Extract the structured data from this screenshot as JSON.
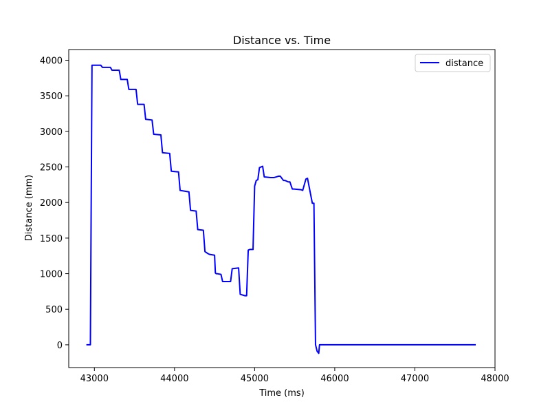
{
  "chart_data": {
    "type": "line",
    "title": "Distance vs. Time",
    "xlabel": "Time (ms)",
    "ylabel": "Distance (mm)",
    "xlim": [
      42680,
      48000
    ],
    "ylim": [
      -320,
      4150
    ],
    "xticks": [
      43000,
      44000,
      45000,
      46000,
      47000,
      48000
    ],
    "yticks": [
      0,
      500,
      1000,
      1500,
      2000,
      2500,
      3000,
      3500,
      4000
    ],
    "grid": false,
    "legend_position": "top-right",
    "series": [
      {
        "name": "distance",
        "color": "#0000ff",
        "x": [
          42900,
          42950,
          42970,
          43080,
          43100,
          43200,
          43220,
          43310,
          43330,
          43410,
          43430,
          43520,
          43540,
          43620,
          43640,
          43720,
          43740,
          43830,
          43850,
          43940,
          43960,
          44050,
          44070,
          44180,
          44200,
          44270,
          44290,
          44360,
          44380,
          44420,
          44440,
          44500,
          44510,
          44520,
          44530,
          44580,
          44600,
          44700,
          44720,
          44800,
          44820,
          44880,
          44900,
          44920,
          44940,
          44980,
          45000,
          45020,
          45040,
          45060,
          45100,
          45120,
          45200,
          45240,
          45300,
          45320,
          45360,
          45380,
          45420,
          45440,
          45470,
          45490,
          45580,
          45600,
          45640,
          45660,
          45720,
          45740,
          45760,
          45780,
          45800,
          45810,
          45830,
          47760
        ],
        "y": [
          0,
          0,
          3930,
          3930,
          3900,
          3900,
          3860,
          3860,
          3730,
          3730,
          3590,
          3590,
          3380,
          3380,
          3170,
          3160,
          2960,
          2950,
          2700,
          2690,
          2440,
          2430,
          2170,
          2150,
          1890,
          1880,
          1620,
          1610,
          1310,
          1280,
          1270,
          1260,
          1010,
          1000,
          1000,
          990,
          890,
          890,
          1070,
          1080,
          710,
          690,
          690,
          1330,
          1340,
          1340,
          2230,
          2310,
          2320,
          2490,
          2510,
          2360,
          2350,
          2350,
          2370,
          2370,
          2310,
          2310,
          2290,
          2290,
          2190,
          2190,
          2180,
          2170,
          2330,
          2340,
          1990,
          1990,
          0,
          -90,
          -120,
          0,
          0,
          0
        ]
      }
    ]
  }
}
